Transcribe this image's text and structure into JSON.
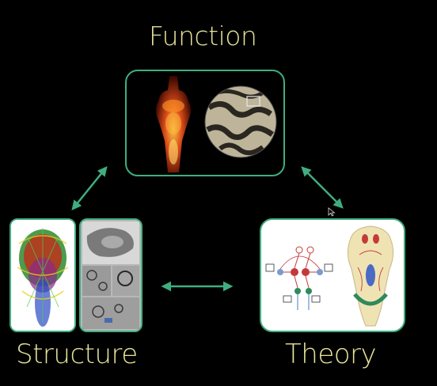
{
  "labels": {
    "function": "Function",
    "structure": "Structure",
    "theory": "Theory"
  },
  "colors": {
    "label": "#e6e49a",
    "accent": "#3fae7f",
    "background": "#000000"
  }
}
